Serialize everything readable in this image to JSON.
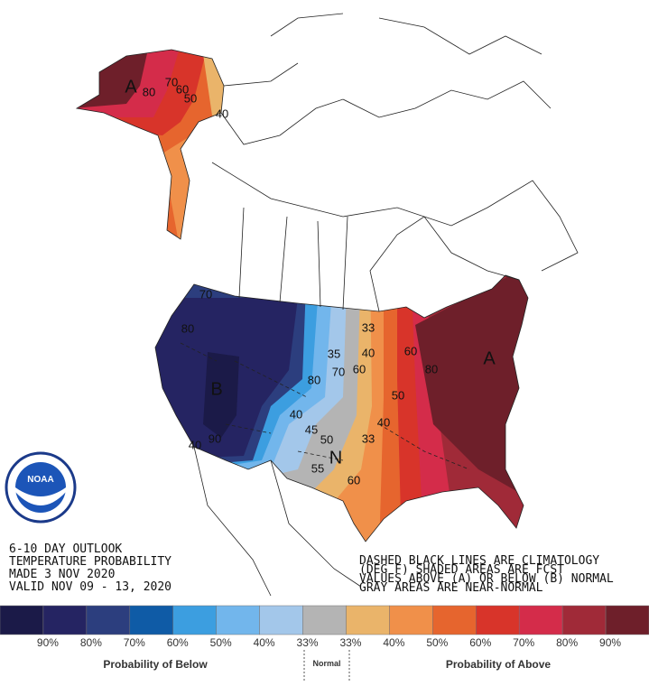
{
  "map": {
    "labels": [
      "A",
      "80",
      "70",
      "60",
      "50",
      "40",
      "70",
      "80",
      "B",
      "90",
      "40",
      "35",
      "33",
      "40",
      "70",
      "60",
      "80",
      "40",
      "45",
      "50",
      "55",
      "33",
      "N",
      "60",
      "60",
      "80",
      "50",
      "40",
      "A"
    ]
  },
  "outlook": {
    "lines": [
      "6-10 DAY OUTLOOK",
      "TEMPERATURE PROBABILITY",
      "MADE  3 NOV 2020",
      "VALID  NOV 09 - 13, 2020"
    ]
  },
  "notes": {
    "lines": [
      "DASHED BLACK LINES ARE CLIMATOLOGY",
      "(DEG F) SHADED AREAS ARE FCST",
      "VALUES ABOVE (A) OR BELOW (B) NORMAL",
      "GRAY AREAS ARE NEAR-NORMAL"
    ]
  },
  "logo": {
    "text": "NOAA"
  },
  "legend": {
    "colors": [
      "#1b1a48",
      "#252462",
      "#2c3e7e",
      "#0f5ba6",
      "#3c9ee0",
      "#72b6ec",
      "#a3c7ea",
      "#b4b4b4",
      "#eab46a",
      "#f0904a",
      "#e6652e",
      "#d8342a",
      "#d42c4a",
      "#a02a38",
      "#6e1f2a"
    ],
    "labels": [
      "90%",
      "80%",
      "70%",
      "60%",
      "50%",
      "40%",
      "33%",
      "33%",
      "40%",
      "50%",
      "60%",
      "70%",
      "80%",
      "90%"
    ],
    "below": "Probability of Below",
    "normal": "Normal",
    "above": "Probability of Above"
  }
}
